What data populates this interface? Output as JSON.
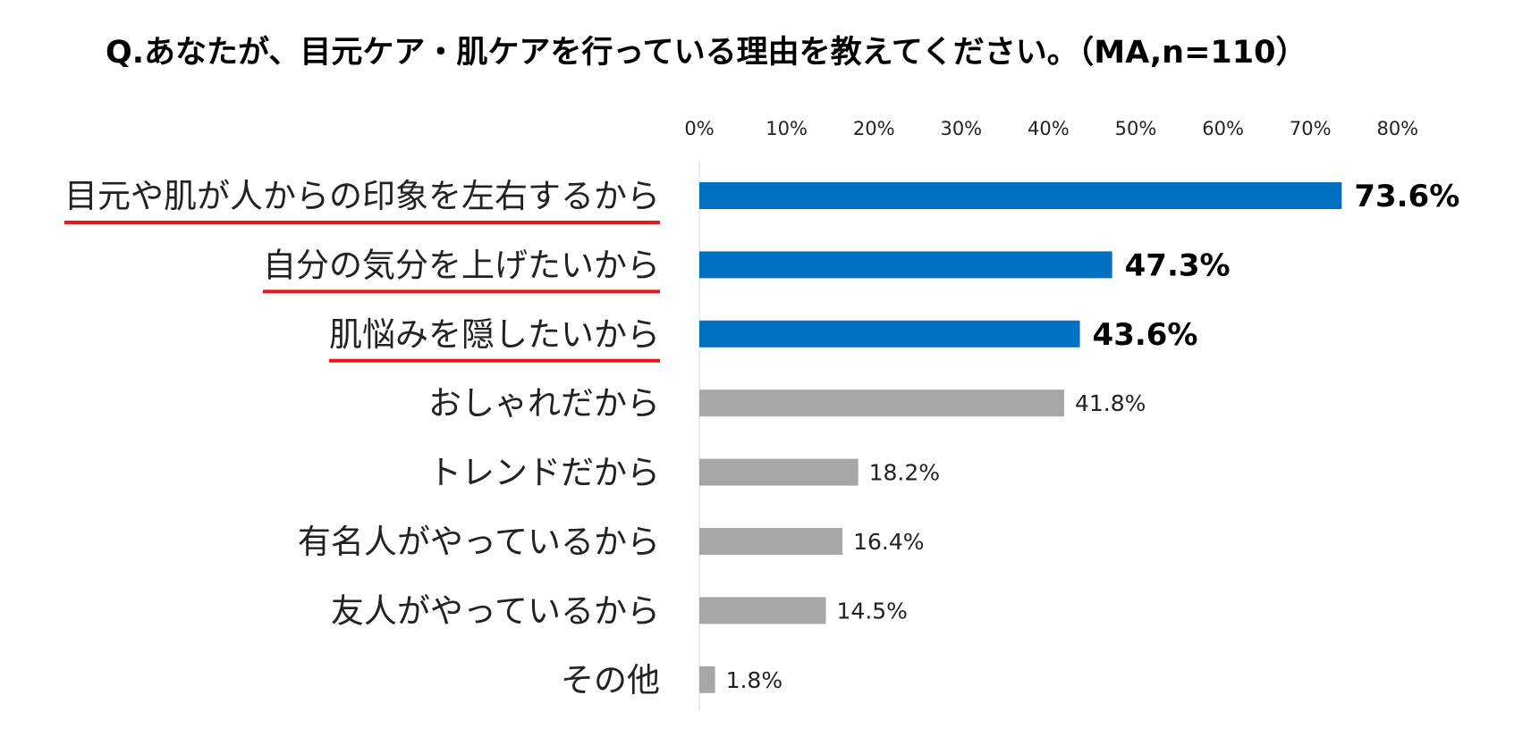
{
  "chart_data": {
    "type": "bar",
    "orientation": "horizontal",
    "title": "Q.あなたが、目元ケア・肌ケアを行っている理由を教えてください。（MA,n=110）",
    "categories": [
      "目元や肌が人からの印象を左右するから",
      "自分の気分を上げたいから",
      "肌悩みを隠したいから",
      "おしゃれだから",
      "トレンドだから",
      "有名人がやっているから",
      "友人がやっているから",
      "その他"
    ],
    "values": [
      73.6,
      47.3,
      43.6,
      41.8,
      18.2,
      16.4,
      14.5,
      1.8
    ],
    "value_labels": [
      "73.6%",
      "47.3%",
      "43.6%",
      "41.8%",
      "18.2%",
      "16.4%",
      "14.5%",
      "1.8%"
    ],
    "highlighted": [
      true,
      true,
      true,
      false,
      false,
      false,
      false,
      false
    ],
    "xlim": [
      0,
      80
    ],
    "x_ticks": [
      "0%",
      "10%",
      "20%",
      "30%",
      "40%",
      "50%",
      "60%",
      "70%",
      "80%"
    ],
    "grid": false,
    "legend": "none",
    "colors": {
      "highlight": "#0070C0",
      "normal": "#A6A6A6",
      "underline": "#E8141E",
      "axis": "#D9D9D9"
    }
  }
}
